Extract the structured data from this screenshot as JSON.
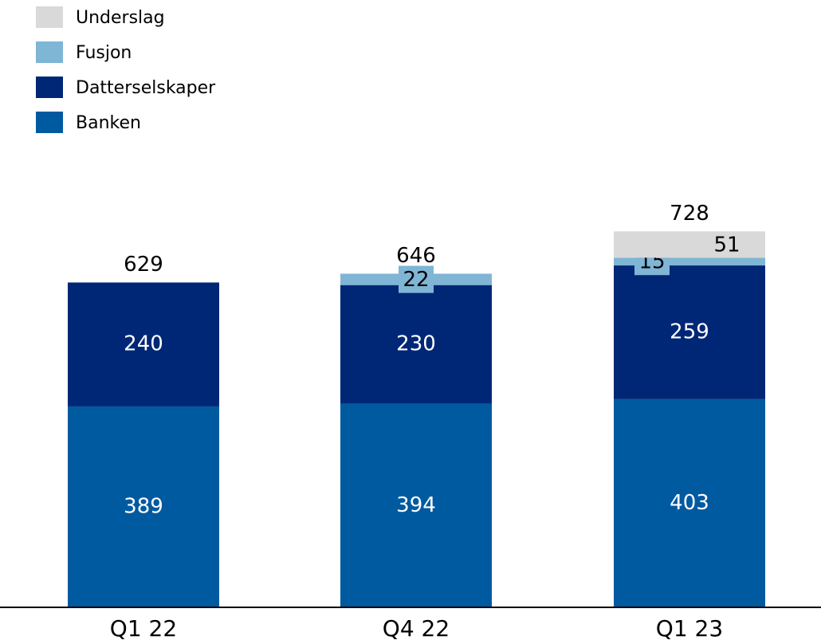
{
  "chart_data": {
    "type": "stacked_bar",
    "categories": [
      "Q1 22",
      "Q4 22",
      "Q1 23"
    ],
    "series": [
      {
        "name": "Banken",
        "color": "#005aa0",
        "values": [
          389,
          394,
          403
        ]
      },
      {
        "name": "Datterselskaper",
        "color": "#002776",
        "values": [
          240,
          230,
          259
        ]
      },
      {
        "name": "Fusjon",
        "color": "#7fb5d5",
        "values": [
          null,
          22,
          15
        ]
      },
      {
        "name": "Underslag",
        "color": "#d9d9d9",
        "values": [
          null,
          null,
          51
        ]
      }
    ],
    "totals": [
      629,
      646,
      728
    ],
    "ylim": [
      0,
      1176
    ]
  }
}
